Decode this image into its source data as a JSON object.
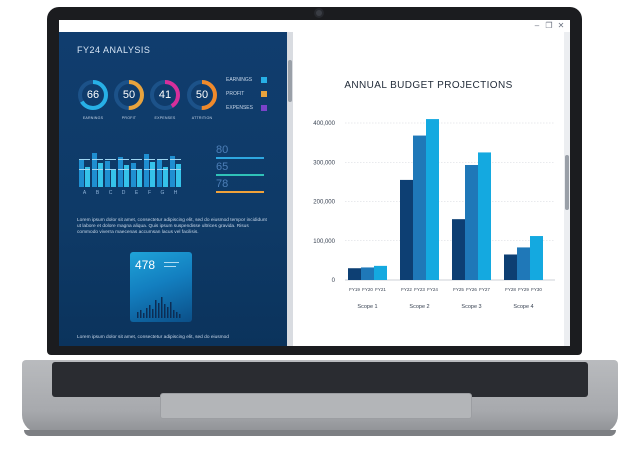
{
  "dashboard": {
    "title": "FY24 ANALYSIS",
    "kpis": [
      {
        "value": "66",
        "label": "EARNINGS",
        "color": "#27b0e6",
        "fraction": 0.66
      },
      {
        "value": "50",
        "label": "PROFIT",
        "color": "#e8a33d",
        "fraction": 0.5
      },
      {
        "value": "41",
        "label": "EXPENSES",
        "color": "#d62f9b",
        "fraction": 0.41
      },
      {
        "value": "50",
        "label": "ATTRITION",
        "color": "#f08a2b",
        "fraction": 0.5
      }
    ],
    "legend": [
      {
        "label": "EARNINGS",
        "color": "#27b0e6"
      },
      {
        "label": "PROFIT",
        "color": "#e8a33d"
      },
      {
        "label": "EXPENSES",
        "color": "#7b43c9"
      }
    ],
    "bar_labels": [
      "A",
      "B",
      "C",
      "D",
      "E",
      "F",
      "G",
      "H"
    ],
    "stats": [
      {
        "value": "80",
        "color": "#2ea7e0"
      },
      {
        "value": "65",
        "color": "#30c2b8"
      },
      {
        "value": "78",
        "color": "#f0a23a"
      }
    ],
    "lorem_1": "Lorem ipsum dolor sit amet, consectetur adipiscing elit, sed do eiusmod tempor incididunt ut labore et dolore magna aliqua. Quis ipsum suspendisse ultrices gravida. Risus commodo viverra maecenas accumsan lacus vel facilisis.",
    "card_value": "478",
    "lorem_2": "Lorem ipsum dolor sit amet, consectetur adipiscing elit, sed do eiusmod"
  },
  "chart_data": {
    "type": "bar",
    "title": "ANNUAL BUDGET PROJECTIONS",
    "ylim": [
      0,
      400000
    ],
    "yticks": [
      "400,000",
      "300,000",
      "200,000",
      "100,000",
      "0"
    ],
    "grid": true,
    "groups": [
      {
        "name": "Scope 1",
        "bars": [
          {
            "x": "FY19",
            "value": 30000,
            "color": "#0d3f73"
          },
          {
            "x": "FY20",
            "value": 32000,
            "color": "#1f78b8"
          },
          {
            "x": "FY21",
            "value": 36000,
            "color": "#14a9e0"
          }
        ]
      },
      {
        "name": "Scope 2",
        "bars": [
          {
            "x": "FY22",
            "value": 255000,
            "color": "#0d3f73"
          },
          {
            "x": "FY23",
            "value": 368000,
            "color": "#1f78b8"
          },
          {
            "x": "FY24",
            "value": 410000,
            "color": "#14a9e0"
          }
        ]
      },
      {
        "name": "Scope 3",
        "bars": [
          {
            "x": "FY25",
            "value": 155000,
            "color": "#0d3f73"
          },
          {
            "x": "FY26",
            "value": 293000,
            "color": "#1f78b8"
          },
          {
            "x": "FY27",
            "value": 325000,
            "color": "#14a9e0"
          }
        ]
      },
      {
        "name": "Scope 4",
        "bars": [
          {
            "x": "FY28",
            "value": 65000,
            "color": "#0d3f73"
          },
          {
            "x": "FY29",
            "value": 83000,
            "color": "#1f78b8"
          },
          {
            "x": "FY30",
            "value": 112000,
            "color": "#14a9e0"
          }
        ]
      }
    ]
  }
}
